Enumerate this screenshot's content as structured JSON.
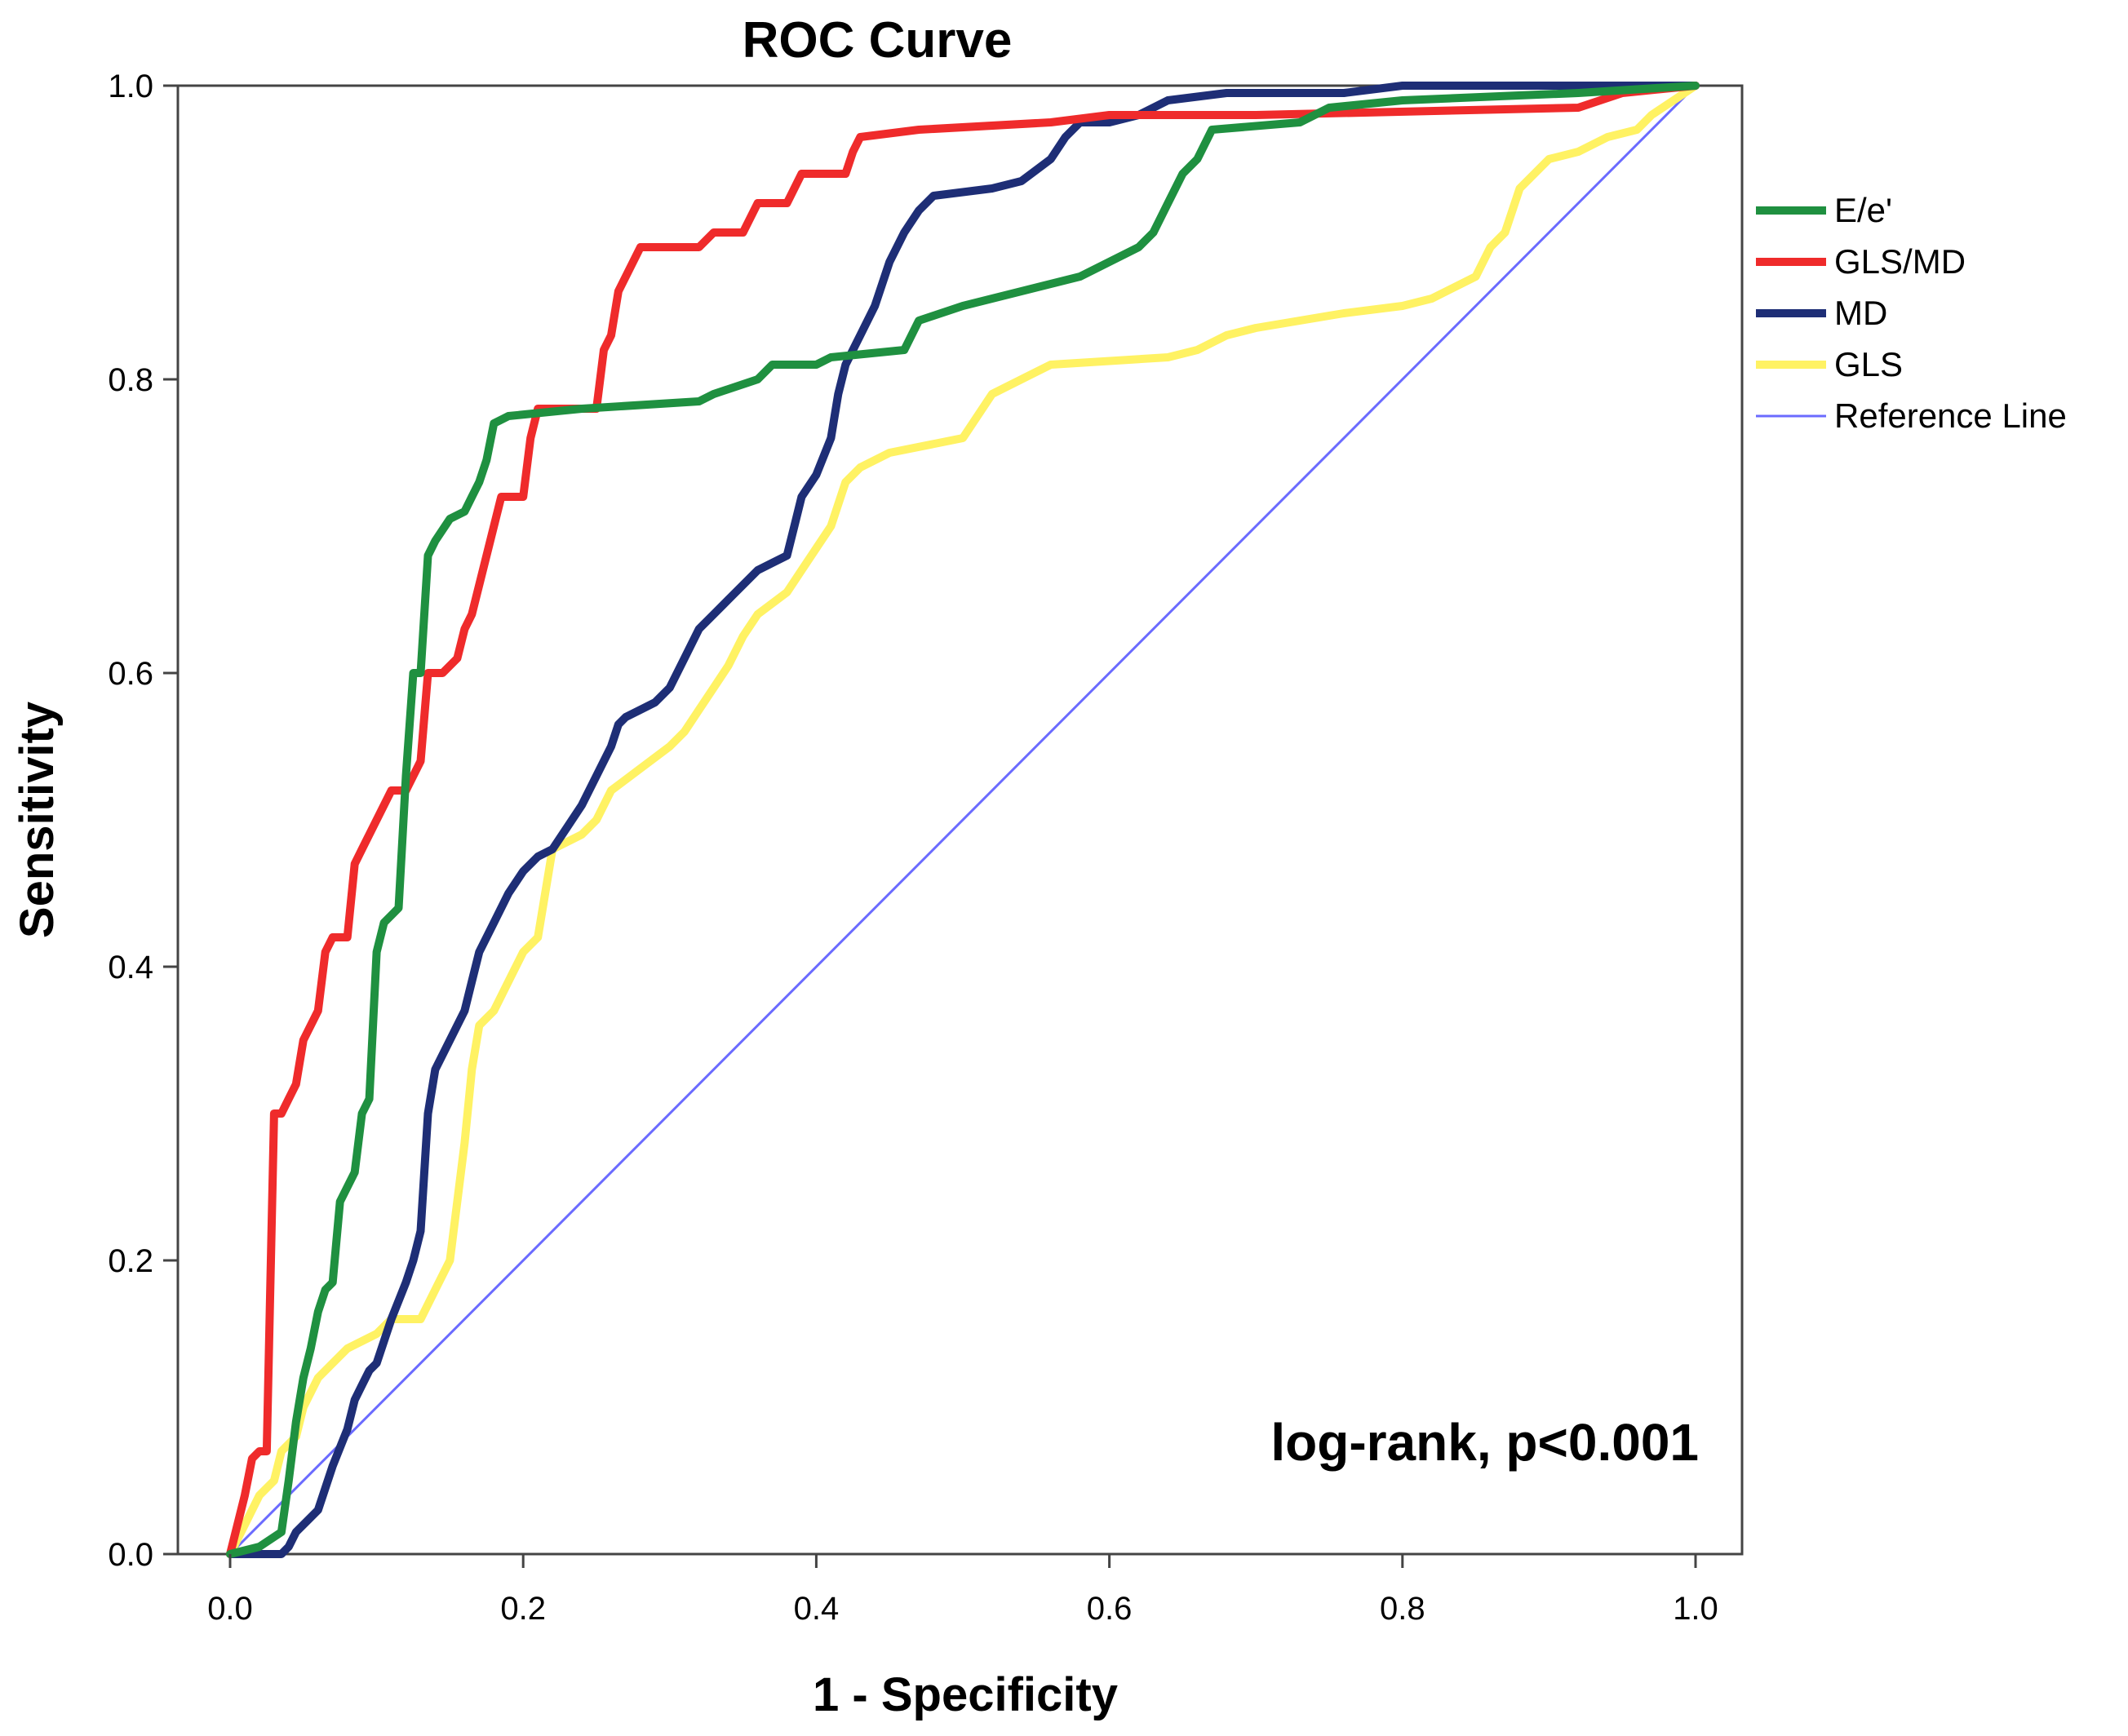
{
  "chart_data": {
    "type": "line",
    "title": "ROC Curve",
    "xlabel": "1 - Specificity",
    "ylabel": "Sensitivity",
    "xlim": [
      0.0,
      1.0
    ],
    "ylim": [
      0.0,
      1.0
    ],
    "xticks": [
      "0.0",
      "0.2",
      "0.4",
      "0.6",
      "0.8",
      "1.0"
    ],
    "yticks": [
      "0.0",
      "0.2",
      "0.4",
      "0.6",
      "0.8",
      "1.0"
    ],
    "legend_position": "right",
    "annotation": "log-rank, p<0.001",
    "series": [
      {
        "name": "E/e'",
        "color": "#1f9040",
        "points": [
          [
            0,
            0
          ],
          [
            0.02,
            0.005
          ],
          [
            0.035,
            0.015
          ],
          [
            0.04,
            0.05
          ],
          [
            0.045,
            0.09
          ],
          [
            0.05,
            0.12
          ],
          [
            0.055,
            0.14
          ],
          [
            0.06,
            0.165
          ],
          [
            0.065,
            0.18
          ],
          [
            0.07,
            0.185
          ],
          [
            0.075,
            0.24
          ],
          [
            0.08,
            0.25
          ],
          [
            0.085,
            0.26
          ],
          [
            0.09,
            0.3
          ],
          [
            0.095,
            0.31
          ],
          [
            0.1,
            0.41
          ],
          [
            0.105,
            0.43
          ],
          [
            0.11,
            0.435
          ],
          [
            0.115,
            0.44
          ],
          [
            0.12,
            0.53
          ],
          [
            0.125,
            0.6
          ],
          [
            0.13,
            0.6
          ],
          [
            0.135,
            0.68
          ],
          [
            0.14,
            0.69
          ],
          [
            0.15,
            0.705
          ],
          [
            0.16,
            0.71
          ],
          [
            0.165,
            0.72
          ],
          [
            0.17,
            0.73
          ],
          [
            0.175,
            0.745
          ],
          [
            0.18,
            0.77
          ],
          [
            0.19,
            0.775
          ],
          [
            0.24,
            0.78
          ],
          [
            0.32,
            0.785
          ],
          [
            0.33,
            0.79
          ],
          [
            0.36,
            0.8
          ],
          [
            0.37,
            0.81
          ],
          [
            0.4,
            0.81
          ],
          [
            0.41,
            0.815
          ],
          [
            0.46,
            0.82
          ],
          [
            0.47,
            0.84
          ],
          [
            0.5,
            0.85
          ],
          [
            0.54,
            0.86
          ],
          [
            0.58,
            0.87
          ],
          [
            0.6,
            0.88
          ],
          [
            0.62,
            0.89
          ],
          [
            0.63,
            0.9
          ],
          [
            0.64,
            0.92
          ],
          [
            0.65,
            0.94
          ],
          [
            0.66,
            0.95
          ],
          [
            0.67,
            0.97
          ],
          [
            0.73,
            0.975
          ],
          [
            0.75,
            0.985
          ],
          [
            0.8,
            0.99
          ],
          [
            0.92,
            0.995
          ],
          [
            1,
            1
          ]
        ]
      },
      {
        "name": "GLS/MD",
        "color": "#ef2b2b",
        "points": [
          [
            0,
            0
          ],
          [
            0.005,
            0.02
          ],
          [
            0.01,
            0.04
          ],
          [
            0.015,
            0.065
          ],
          [
            0.02,
            0.07
          ],
          [
            0.025,
            0.07
          ],
          [
            0.03,
            0.3
          ],
          [
            0.035,
            0.3
          ],
          [
            0.04,
            0.31
          ],
          [
            0.045,
            0.32
          ],
          [
            0.05,
            0.35
          ],
          [
            0.055,
            0.36
          ],
          [
            0.06,
            0.37
          ],
          [
            0.065,
            0.41
          ],
          [
            0.07,
            0.42
          ],
          [
            0.08,
            0.42
          ],
          [
            0.085,
            0.47
          ],
          [
            0.09,
            0.48
          ],
          [
            0.095,
            0.49
          ],
          [
            0.1,
            0.5
          ],
          [
            0.105,
            0.51
          ],
          [
            0.11,
            0.52
          ],
          [
            0.12,
            0.52
          ],
          [
            0.13,
            0.54
          ],
          [
            0.135,
            0.6
          ],
          [
            0.145,
            0.6
          ],
          [
            0.155,
            0.61
          ],
          [
            0.16,
            0.63
          ],
          [
            0.165,
            0.64
          ],
          [
            0.17,
            0.66
          ],
          [
            0.18,
            0.7
          ],
          [
            0.185,
            0.72
          ],
          [
            0.2,
            0.72
          ],
          [
            0.205,
            0.76
          ],
          [
            0.21,
            0.78
          ],
          [
            0.25,
            0.78
          ],
          [
            0.255,
            0.82
          ],
          [
            0.26,
            0.83
          ],
          [
            0.265,
            0.86
          ],
          [
            0.27,
            0.87
          ],
          [
            0.28,
            0.89
          ],
          [
            0.32,
            0.89
          ],
          [
            0.33,
            0.9
          ],
          [
            0.35,
            0.9
          ],
          [
            0.36,
            0.92
          ],
          [
            0.38,
            0.92
          ],
          [
            0.39,
            0.94
          ],
          [
            0.42,
            0.94
          ],
          [
            0.425,
            0.955
          ],
          [
            0.43,
            0.965
          ],
          [
            0.47,
            0.97
          ],
          [
            0.56,
            0.975
          ],
          [
            0.6,
            0.98
          ],
          [
            0.66,
            0.98
          ],
          [
            0.7,
            0.98
          ],
          [
            0.92,
            0.985
          ],
          [
            0.95,
            0.995
          ],
          [
            1,
            1
          ]
        ]
      },
      {
        "name": "MD",
        "color": "#1e2e76",
        "points": [
          [
            0,
            0
          ],
          [
            0.035,
            0.0
          ],
          [
            0.04,
            0.005
          ],
          [
            0.045,
            0.015
          ],
          [
            0.06,
            0.03
          ],
          [
            0.07,
            0.06
          ],
          [
            0.08,
            0.085
          ],
          [
            0.085,
            0.105
          ],
          [
            0.09,
            0.115
          ],
          [
            0.095,
            0.125
          ],
          [
            0.1,
            0.13
          ],
          [
            0.11,
            0.16
          ],
          [
            0.12,
            0.185
          ],
          [
            0.125,
            0.2
          ],
          [
            0.13,
            0.22
          ],
          [
            0.135,
            0.3
          ],
          [
            0.14,
            0.33
          ],
          [
            0.15,
            0.35
          ],
          [
            0.16,
            0.37
          ],
          [
            0.165,
            0.39
          ],
          [
            0.17,
            0.41
          ],
          [
            0.175,
            0.42
          ],
          [
            0.18,
            0.43
          ],
          [
            0.19,
            0.45
          ],
          [
            0.2,
            0.465
          ],
          [
            0.21,
            0.475
          ],
          [
            0.22,
            0.48
          ],
          [
            0.23,
            0.495
          ],
          [
            0.24,
            0.51
          ],
          [
            0.25,
            0.53
          ],
          [
            0.26,
            0.55
          ],
          [
            0.265,
            0.565
          ],
          [
            0.27,
            0.57
          ],
          [
            0.28,
            0.575
          ],
          [
            0.29,
            0.58
          ],
          [
            0.3,
            0.59
          ],
          [
            0.31,
            0.61
          ],
          [
            0.32,
            0.63
          ],
          [
            0.33,
            0.64
          ],
          [
            0.34,
            0.65
          ],
          [
            0.35,
            0.66
          ],
          [
            0.36,
            0.67
          ],
          [
            0.37,
            0.675
          ],
          [
            0.38,
            0.68
          ],
          [
            0.385,
            0.7
          ],
          [
            0.39,
            0.72
          ],
          [
            0.4,
            0.735
          ],
          [
            0.41,
            0.76
          ],
          [
            0.415,
            0.79
          ],
          [
            0.42,
            0.81
          ],
          [
            0.43,
            0.83
          ],
          [
            0.44,
            0.85
          ],
          [
            0.45,
            0.88
          ],
          [
            0.46,
            0.9
          ],
          [
            0.47,
            0.915
          ],
          [
            0.48,
            0.925
          ],
          [
            0.52,
            0.93
          ],
          [
            0.54,
            0.935
          ],
          [
            0.56,
            0.95
          ],
          [
            0.57,
            0.965
          ],
          [
            0.58,
            0.975
          ],
          [
            0.6,
            0.975
          ],
          [
            0.62,
            0.98
          ],
          [
            0.64,
            0.99
          ],
          [
            0.68,
            0.995
          ],
          [
            0.76,
            0.995
          ],
          [
            0.8,
            1.0
          ],
          [
            1,
            1
          ]
        ]
      },
      {
        "name": "GLS",
        "color": "#fff263",
        "points": [
          [
            0,
            0
          ],
          [
            0.01,
            0.02
          ],
          [
            0.02,
            0.04
          ],
          [
            0.03,
            0.05
          ],
          [
            0.035,
            0.07
          ],
          [
            0.045,
            0.08
          ],
          [
            0.05,
            0.1
          ],
          [
            0.06,
            0.12
          ],
          [
            0.07,
            0.13
          ],
          [
            0.08,
            0.14
          ],
          [
            0.09,
            0.145
          ],
          [
            0.1,
            0.15
          ],
          [
            0.11,
            0.16
          ],
          [
            0.13,
            0.16
          ],
          [
            0.14,
            0.18
          ],
          [
            0.15,
            0.2
          ],
          [
            0.155,
            0.24
          ],
          [
            0.16,
            0.28
          ],
          [
            0.165,
            0.33
          ],
          [
            0.17,
            0.36
          ],
          [
            0.18,
            0.37
          ],
          [
            0.19,
            0.39
          ],
          [
            0.2,
            0.41
          ],
          [
            0.21,
            0.42
          ],
          [
            0.22,
            0.48
          ],
          [
            0.24,
            0.49
          ],
          [
            0.25,
            0.5
          ],
          [
            0.26,
            0.52
          ],
          [
            0.28,
            0.535
          ],
          [
            0.3,
            0.55
          ],
          [
            0.31,
            0.56
          ],
          [
            0.32,
            0.575
          ],
          [
            0.33,
            0.59
          ],
          [
            0.34,
            0.605
          ],
          [
            0.35,
            0.625
          ],
          [
            0.36,
            0.64
          ],
          [
            0.38,
            0.655
          ],
          [
            0.39,
            0.67
          ],
          [
            0.4,
            0.685
          ],
          [
            0.41,
            0.7
          ],
          [
            0.42,
            0.73
          ],
          [
            0.43,
            0.74
          ],
          [
            0.45,
            0.75
          ],
          [
            0.5,
            0.76
          ],
          [
            0.52,
            0.79
          ],
          [
            0.54,
            0.8
          ],
          [
            0.56,
            0.81
          ],
          [
            0.64,
            0.815
          ],
          [
            0.66,
            0.82
          ],
          [
            0.68,
            0.83
          ],
          [
            0.7,
            0.835
          ],
          [
            0.76,
            0.845
          ],
          [
            0.8,
            0.85
          ],
          [
            0.82,
            0.855
          ],
          [
            0.85,
            0.87
          ],
          [
            0.86,
            0.89
          ],
          [
            0.87,
            0.9
          ],
          [
            0.88,
            0.93
          ],
          [
            0.9,
            0.95
          ],
          [
            0.92,
            0.955
          ],
          [
            0.94,
            0.965
          ],
          [
            0.96,
            0.97
          ],
          [
            0.97,
            0.98
          ],
          [
            1,
            1
          ]
        ]
      },
      {
        "name": "Reference Line",
        "color": "#6b6bff",
        "points": [
          [
            0,
            0
          ],
          [
            1,
            1
          ]
        ]
      }
    ]
  }
}
